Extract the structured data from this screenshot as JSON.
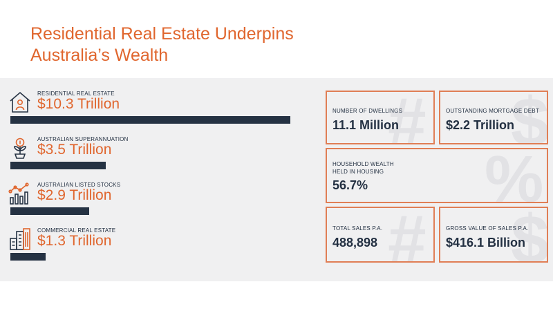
{
  "title_line1": "Residential Real Estate Underpins",
  "title_line2": "Australia’s Wealth",
  "chart_data": {
    "type": "bar",
    "orientation": "horizontal",
    "categories": [
      "RESIDENTIAL REAL ESTATE",
      "AUSTRALIAN SUPERANNUATION",
      "AUSTRALIAN LISTED STOCKS",
      "COMMERCIAL REAL ESTATE"
    ],
    "values": [
      10.3,
      3.5,
      2.9,
      1.3
    ],
    "value_labels": [
      "$10.3 Trillion",
      "$3.5 Trillion",
      "$2.9 Trillion",
      "$1.3 Trillion"
    ],
    "icons": [
      "house-person-icon",
      "money-plant-icon",
      "growth-chart-icon",
      "office-building-icon"
    ],
    "title": "",
    "xlabel": "",
    "ylabel": "",
    "xlim": [
      0,
      10.3
    ],
    "grid": false
  },
  "stats": [
    {
      "label": "NUMBER OF DWELLINGS",
      "value": "11.1 Million"
    },
    {
      "label": "OUTSTANDING MORTGAGE DEBT",
      "value": "$2.2 Trillion"
    },
    {
      "label": "HOUSEHOLD WEALTH\nHELD IN HOUSING",
      "value": "56.7%"
    },
    {
      "label": "TOTAL SALES P.A.",
      "value": "488,898"
    },
    {
      "label": "GROSS VALUE OF SALES P.A.",
      "value": "$416.1 Billion"
    }
  ],
  "watermarks": [
    "#",
    "$",
    "%",
    "#",
    "$"
  ],
  "colors": {
    "accent": "#e0662e",
    "navy": "#253243",
    "panel": "#f0f0f1",
    "box_border": "#e07e55"
  }
}
